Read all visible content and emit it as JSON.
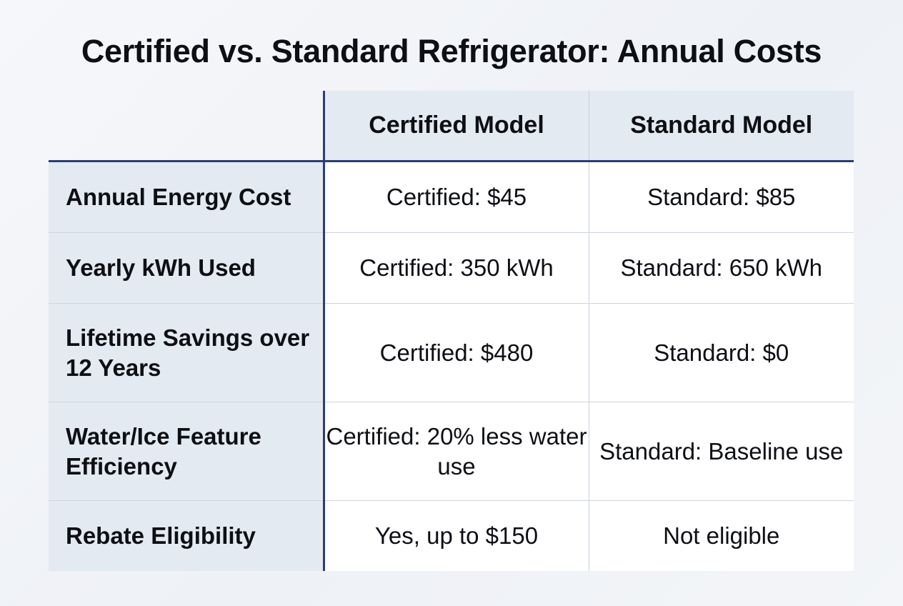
{
  "title": "Certified vs. Standard Refrigerator: Annual Costs",
  "columns": {
    "corner": "",
    "certified": "Certified Model",
    "standard": "Standard Model"
  },
  "rows": [
    {
      "label": "Annual Energy Cost",
      "certified": "Certified: $45",
      "standard": "Standard: $85"
    },
    {
      "label": "Yearly kWh Used",
      "certified": "Certified: 350 kWh",
      "standard": "Standard: 650 kWh"
    },
    {
      "label": "Lifetime Savings over 12 Years",
      "certified": "Certified: $480",
      "standard": "Standard: $0"
    },
    {
      "label": "Water/Ice Feature Efficiency",
      "certified": "Certified: 20% less water use",
      "standard": "Standard: Baseline use"
    },
    {
      "label": "Rebate Eligibility",
      "certified": "Yes, up to $150",
      "standard": "Not eligible"
    }
  ],
  "colors": {
    "accent_line": "#2c3e73",
    "header_fill": "#e4eaf2",
    "cell_fill": "#ffffff",
    "grid_line": "#cfd5de"
  }
}
